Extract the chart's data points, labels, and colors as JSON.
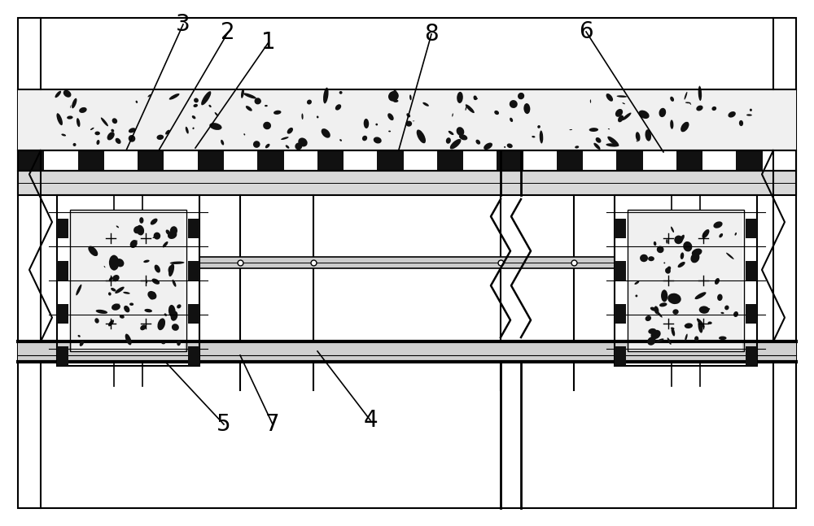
{
  "bg_color": "#ffffff",
  "line_color": "#000000",
  "label_fontsize": 20,
  "border_lw": 1.5,
  "thick_lw": 3.0
}
